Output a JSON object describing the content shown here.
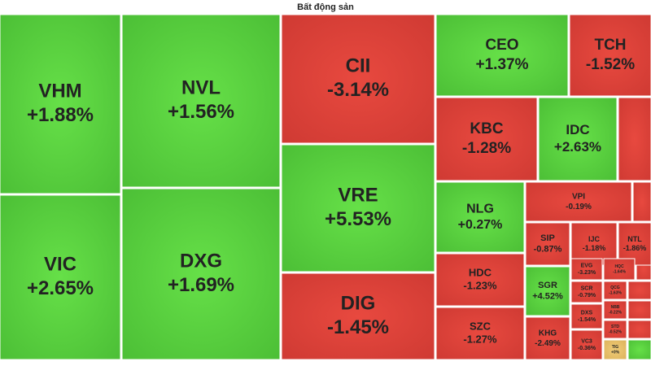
{
  "chart_data": {
    "type": "treemap",
    "title": "Bất động sản",
    "categories": [
      "VHM",
      "VIC",
      "NVL",
      "DXG",
      "CII",
      "VRE",
      "DIG",
      "CEO",
      "TCH",
      "KBC",
      "IDC",
      "NLG",
      "VPI",
      "SIP",
      "IJC",
      "NTL",
      "HDC",
      "SZC",
      "SGR",
      "KHG",
      "EVG",
      "SCR",
      "DXS",
      "VC3",
      "HQC",
      "QCG",
      "NBB",
      "STD",
      "TIG"
    ],
    "values": [
      1.88,
      2.65,
      1.56,
      1.69,
      -3.14,
      5.53,
      -1.45,
      1.37,
      -1.52,
      -1.28,
      2.63,
      0.27,
      -0.19,
      -0.87,
      -1.18,
      -1.86,
      -1.23,
      -1.27,
      4.52,
      -2.49,
      -3.23,
      -0.79,
      -1.54,
      -0.36,
      -1.64,
      -1.63,
      -0.22,
      -0.52,
      0
    ],
    "value_labels": [
      "+1.88%",
      "+2.65%",
      "+1.56%",
      "+1.69%",
      "-3.14%",
      "+5.53%",
      "-1.45%",
      "+1.37%",
      "-1.52%",
      "-1.28%",
      "+2.63%",
      "+0.27%",
      "-0.19%",
      "-0.87%",
      "-1.18%",
      "-1.86%",
      "-1.23%",
      "-1.27%",
      "+4.52%",
      "-2.49%",
      "-3.23%",
      "-0.79%",
      "-1.54%",
      "-0.36%",
      "-1.64%",
      "-1.63%",
      "-0.22%",
      "-0.52%",
      "+0%"
    ]
  }
}
